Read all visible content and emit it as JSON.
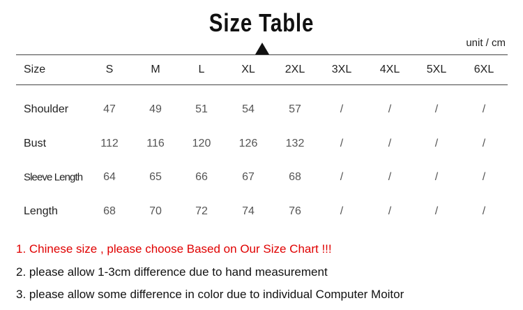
{
  "title": "Size Table",
  "unit": "unit / cm",
  "table": {
    "header_label": "Size",
    "sizes": [
      "S",
      "M",
      "L",
      "XL",
      "2XL",
      "3XL",
      "4XL",
      "5XL",
      "6XL"
    ],
    "rows": [
      {
        "label": "Shoulder",
        "values": [
          "47",
          "49",
          "51",
          "54",
          "57",
          "/",
          "/",
          "/",
          "/"
        ]
      },
      {
        "label": "Bust",
        "values": [
          "112",
          "116",
          "120",
          "126",
          "132",
          "/",
          "/",
          "/",
          "/"
        ]
      },
      {
        "label": "Sleeve Length",
        "values": [
          "64",
          "65",
          "66",
          "67",
          "68",
          "/",
          "/",
          "/",
          "/"
        ]
      },
      {
        "label": "Length",
        "values": [
          "68",
          "70",
          "72",
          "74",
          "76",
          "/",
          "/",
          "/",
          "/"
        ]
      }
    ]
  },
  "notes": [
    {
      "text": "1. Chinese size , please choose Based on Our Size Chart !!!",
      "color": "#e00000"
    },
    {
      "text": "2. please allow 1-3cm difference due to hand measurement",
      "color": "#111111"
    },
    {
      "text": "3. please allow some difference in color due to individual Computer Moitor",
      "color": "#111111"
    }
  ]
}
